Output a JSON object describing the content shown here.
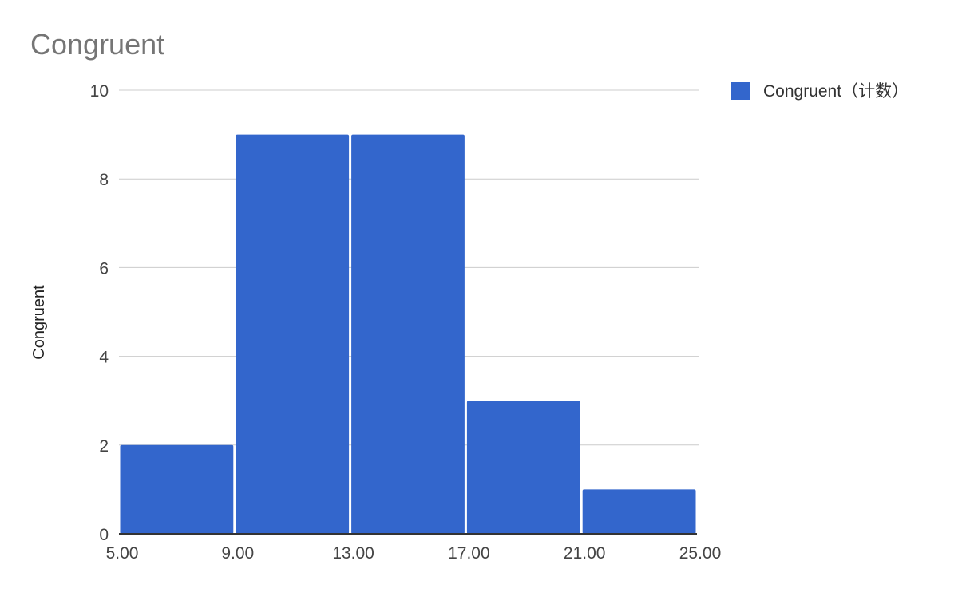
{
  "chart_data": {
    "type": "bar",
    "title": "Congruent",
    "ylabel": "Congruent",
    "xlabel": "",
    "bin_edges": [
      5,
      9,
      13,
      17,
      21,
      25
    ],
    "x_tick_labels": [
      "5.00",
      "9.00",
      "13.00",
      "17.00",
      "21.00",
      "25.00"
    ],
    "series": [
      {
        "name": "Congruent（计数）",
        "values": [
          2,
          9,
          9,
          3,
          1
        ]
      }
    ],
    "ylim": [
      0,
      10
    ],
    "y_ticks": [
      0,
      2,
      4,
      6,
      8,
      10
    ],
    "grid": true,
    "legend_position": "top-right"
  },
  "colors": {
    "bar": "#3366cc",
    "grid": "#cccccc",
    "axis": "#333333",
    "title_text": "#757575",
    "tick_text": "#444444",
    "label_text": "#222222"
  }
}
